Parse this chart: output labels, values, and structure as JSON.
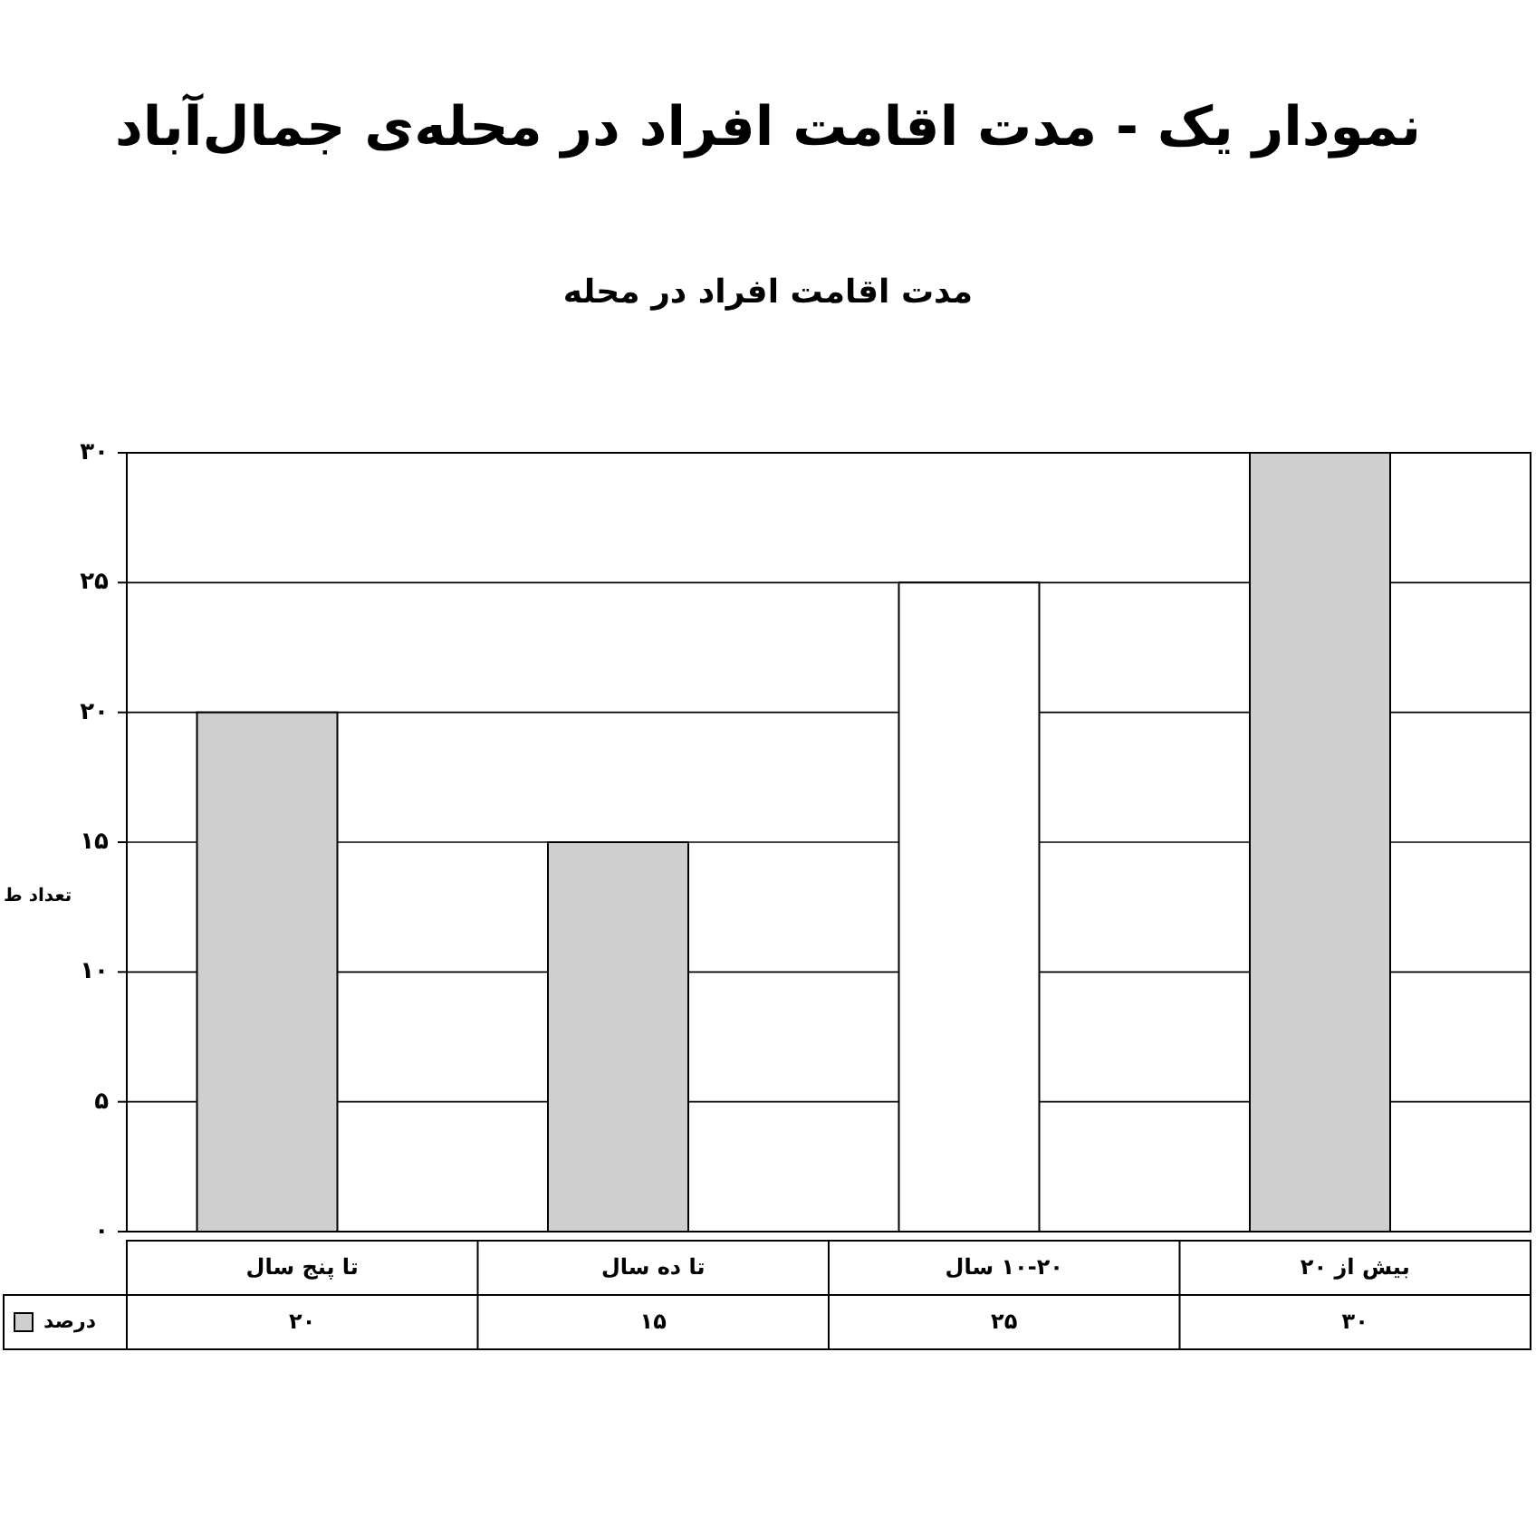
{
  "chart_data": {
    "type": "bar",
    "title": "نمودار یک - مدت اقامت افراد در محله‌ی جمال‌آباد",
    "subtitle": "مدت اقامت افراد در محله",
    "ylabel": "تعداد ط",
    "categories": [
      "تا پنج سال",
      "تا ده سال",
      "۱۰-۲۰ سال",
      "بیش از ۲۰"
    ],
    "series": [
      {
        "name": "درصد",
        "colors": [
          "#cfcfcf",
          "#cfcfcf",
          "#ffffff",
          "#cfcfcf"
        ],
        "value_labels": [
          "۲۰",
          "۱۵",
          "۲۵",
          "۳۰"
        ],
        "values": [
          20,
          15,
          25,
          30
        ]
      }
    ],
    "ylim": [
      0,
      30
    ],
    "yticks": [
      {
        "value": 0,
        "label": "۰"
      },
      {
        "value": 5,
        "label": "۵"
      },
      {
        "value": 10,
        "label": "۱۰"
      },
      {
        "value": 15,
        "label": "۱۵"
      },
      {
        "value": 20,
        "label": "۲۰"
      },
      {
        "value": 25,
        "label": "۲۵"
      },
      {
        "value": 30,
        "label": "۳۰"
      }
    ],
    "grid": "y",
    "legend": "bottom left"
  }
}
